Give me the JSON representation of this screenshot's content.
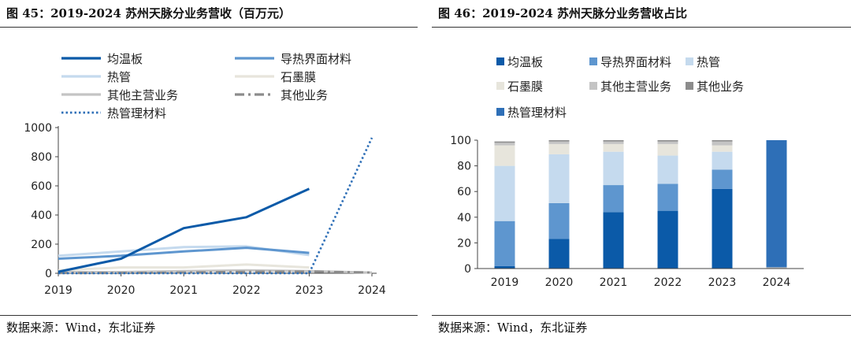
{
  "left": {
    "title": "图 45：2019-2024 苏州天脉分业务营收（百万元）",
    "source": "数据来源：Wind，东北证券"
  },
  "right": {
    "title": "图 46：2019-2024 苏州天脉分业务营收占比",
    "source": "数据来源：Wind，东北证券"
  },
  "colors": {
    "均温板": "#0b5aa8",
    "导热界面材料": "#5e96cf",
    "热管": "#c5daee",
    "石墨膜": "#e7e5dc",
    "其他主营业务": "#c4c4c4",
    "其他业务": "#8c8c8c",
    "热管理材料": "#2e6fb7"
  },
  "chart_data": [
    {
      "type": "line",
      "x": [
        "2019",
        "2020",
        "2021",
        "2022",
        "2023",
        "2024"
      ],
      "ylim": [
        0,
        1000
      ],
      "yticks": [
        0,
        200,
        400,
        600,
        800,
        1000
      ],
      "legend_position": "top",
      "series": [
        {
          "name": "均温板",
          "style": "solid",
          "values": [
            10,
            100,
            310,
            385,
            580,
            null
          ]
        },
        {
          "name": "导热界面材料",
          "style": "solid",
          "values": [
            100,
            120,
            150,
            175,
            140,
            null
          ]
        },
        {
          "name": "热管",
          "style": "solid",
          "values": [
            120,
            150,
            180,
            185,
            125,
            null
          ]
        },
        {
          "name": "石墨膜",
          "style": "solid",
          "values": [
            20,
            40,
            40,
            60,
            40,
            null
          ]
        },
        {
          "name": "其他主营业务",
          "style": "solid",
          "values": [
            8,
            8,
            15,
            20,
            15,
            5
          ]
        },
        {
          "name": "其他业务",
          "style": "dashdot",
          "values": [
            2,
            2,
            5,
            10,
            12,
            5
          ]
        },
        {
          "name": "热管理材料",
          "style": "dotted",
          "values": [
            0,
            0,
            0,
            0,
            0,
            930
          ]
        }
      ]
    },
    {
      "type": "bar",
      "stacked": true,
      "categories": [
        "2019",
        "2020",
        "2021",
        "2022",
        "2023",
        "2024"
      ],
      "ylim": [
        0,
        100
      ],
      "yticks": [
        0,
        20,
        40,
        60,
        80,
        100
      ],
      "legend_position": "top",
      "series": [
        {
          "name": "均温板",
          "values": [
            2,
            23,
            44,
            45,
            62,
            0
          ]
        },
        {
          "name": "导热界面材料",
          "values": [
            35,
            28,
            21,
            21,
            15,
            0
          ]
        },
        {
          "name": "热管",
          "values": [
            43,
            38,
            26,
            22,
            14,
            0
          ]
        },
        {
          "name": "石墨膜",
          "values": [
            16,
            8,
            6,
            9,
            5,
            0
          ]
        },
        {
          "name": "其他主营业务",
          "values": [
            2,
            2,
            2,
            2,
            3,
            1
          ]
        },
        {
          "name": "其他业务",
          "values": [
            1,
            1,
            1,
            1,
            1,
            0
          ]
        },
        {
          "name": "热管理材料",
          "values": [
            0,
            0,
            0,
            0,
            0,
            99
          ]
        }
      ]
    }
  ]
}
